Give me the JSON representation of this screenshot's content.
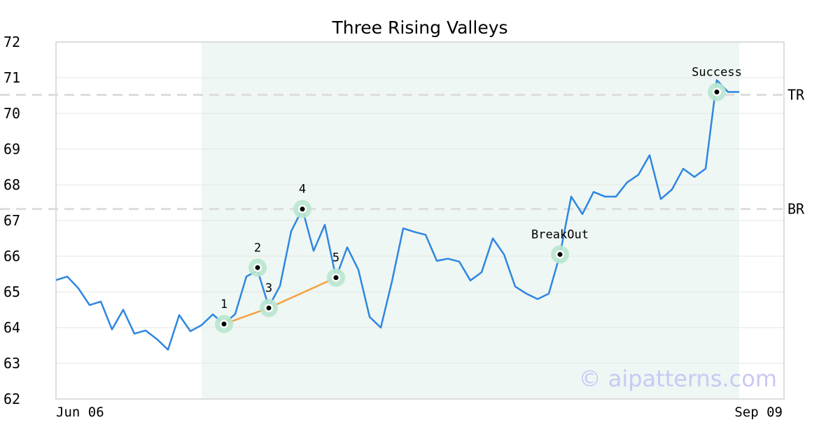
{
  "chart_data": {
    "type": "line",
    "title": "Three Rising Valleys",
    "x_tick_labels": [
      "Jun 06",
      "Sep 09"
    ],
    "ylim": [
      62,
      72
    ],
    "yticks": [
      62,
      63,
      64,
      65,
      66,
      67,
      68,
      69,
      70,
      71,
      72
    ],
    "grid": true,
    "colors": {
      "line": "#2f86e0",
      "trendline": "#f5a142",
      "highlight": "#eef7f3",
      "marker_halo": "#b8e6cf",
      "reference": "#dddddd"
    },
    "series": [
      {
        "values": [
          65.33,
          65.43,
          65.1,
          64.63,
          64.73,
          63.95,
          64.5,
          63.83,
          63.92,
          63.68,
          63.38,
          64.35,
          63.9,
          64.07,
          64.37,
          64.1,
          64.38,
          65.43,
          65.6,
          64.58,
          65.17,
          66.7,
          67.32,
          66.15,
          66.88,
          65.4,
          66.25,
          65.62,
          64.3,
          64.0,
          65.3,
          66.78,
          66.68,
          66.6,
          65.87,
          65.93,
          65.85,
          65.32,
          65.55,
          66.5,
          66.05,
          65.15,
          64.95,
          64.8,
          64.95,
          66.05,
          67.67,
          67.18,
          67.8,
          67.67,
          67.67,
          68.07,
          68.28,
          68.83,
          67.6,
          67.87,
          68.45,
          68.22,
          68.45,
          70.93,
          70.6,
          70.6
        ]
      }
    ],
    "highlight_range": [
      13,
      61
    ],
    "reference_lines": [
      {
        "label": "TR",
        "value": 70.52
      },
      {
        "label": "BR",
        "value": 67.32
      }
    ],
    "annotations": [
      {
        "label": "1",
        "x": 15,
        "y": 64.1
      },
      {
        "label": "2",
        "x": 18,
        "y": 65.68
      },
      {
        "label": "3",
        "x": 19,
        "y": 64.55
      },
      {
        "label": "4",
        "x": 22,
        "y": 67.32
      },
      {
        "label": "5",
        "x": 25,
        "y": 65.4
      },
      {
        "label": "BreakOut",
        "x": 45,
        "y": 66.05
      },
      {
        "label": "Success",
        "x": 59,
        "y": 70.6
      }
    ],
    "trendline": [
      [
        15,
        64.1
      ],
      [
        19,
        64.55
      ],
      [
        25,
        65.4
      ]
    ],
    "watermark": "© aipatterns.com"
  }
}
